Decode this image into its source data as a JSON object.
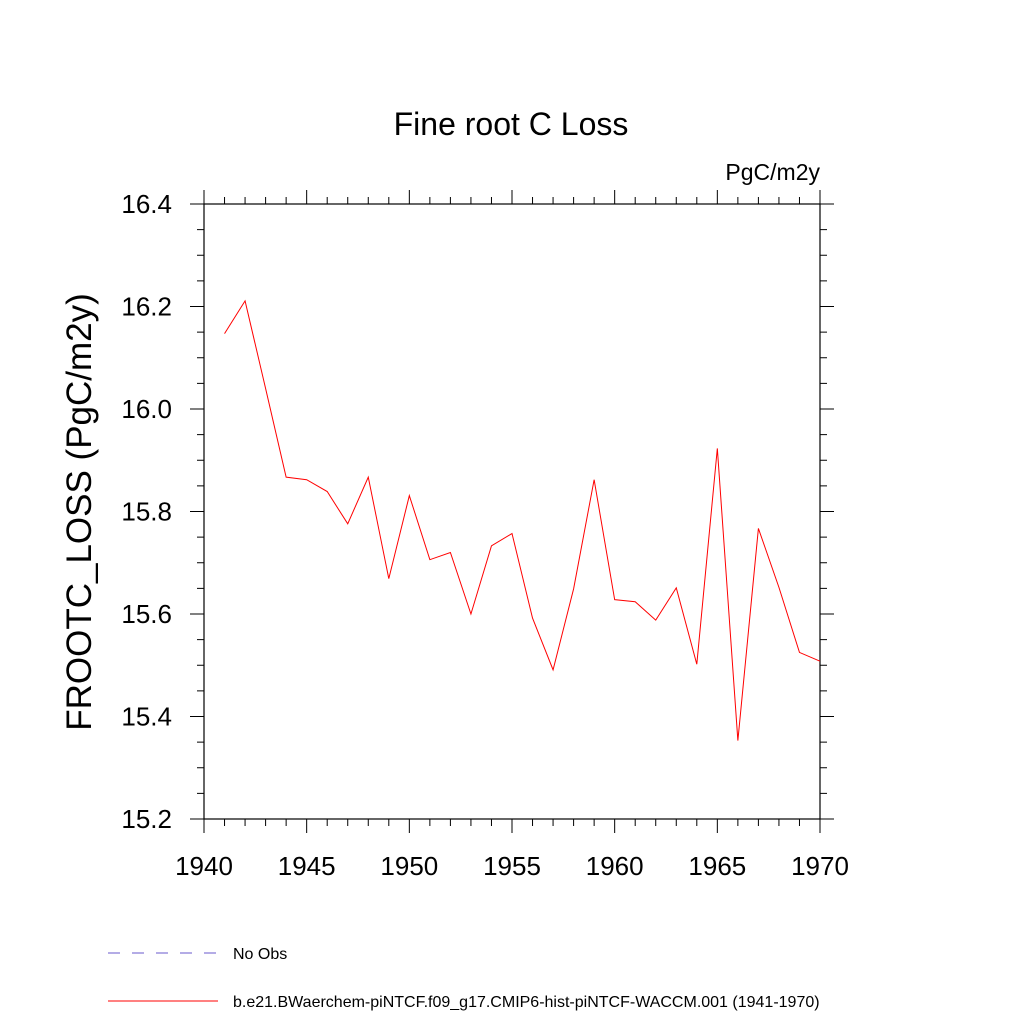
{
  "chart_data": {
    "type": "line",
    "title": "Fine root C Loss",
    "units_label": "PgC/m2y",
    "ylabel": "FROOTC_LOSS  (PgC/m2y)",
    "xlabel": "",
    "xlim": [
      1940,
      1970
    ],
    "ylim": [
      15.2,
      16.4
    ],
    "x_ticks": [
      1940,
      1945,
      1950,
      1955,
      1960,
      1965,
      1970
    ],
    "y_ticks": [
      15.2,
      15.4,
      15.6,
      15.8,
      16.0,
      16.2,
      16.4
    ],
    "y_tick_labels": [
      "15.2",
      "15.4",
      "15.6",
      "15.8",
      "16.0",
      "16.2",
      "16.4"
    ],
    "x": [
      1941,
      1942,
      1943,
      1944,
      1945,
      1946,
      1947,
      1948,
      1949,
      1950,
      1951,
      1952,
      1953,
      1954,
      1955,
      1956,
      1957,
      1958,
      1959,
      1960,
      1961,
      1962,
      1963,
      1964,
      1965,
      1966,
      1967,
      1968,
      1969,
      1970
    ],
    "series": [
      {
        "name": "b.e21.BWaerchem-piNTCF.f09_g17.CMIP6-hist-piNTCF-WACCM.001 (1941-1970)",
        "color": "#ff0000",
        "values": [
          16.147,
          16.211,
          16.04,
          15.867,
          15.862,
          15.839,
          15.776,
          15.867,
          15.669,
          15.831,
          15.706,
          15.72,
          15.6,
          15.733,
          15.757,
          15.592,
          15.491,
          15.649,
          15.862,
          15.628,
          15.624,
          15.588,
          15.651,
          15.502,
          15.923,
          15.353,
          15.767,
          15.652,
          15.525,
          15.508
        ]
      }
    ],
    "legend": [
      {
        "label": "No Obs",
        "style": "dashed",
        "color": "#6a5acd"
      },
      {
        "label": "b.e21.BWaerchem-piNTCF.f09_g17.CMIP6-hist-piNTCF-WACCM.001 (1941-1970)",
        "style": "solid",
        "color": "#ff0000"
      }
    ],
    "grid": false,
    "legend_placement": "bottom"
  }
}
